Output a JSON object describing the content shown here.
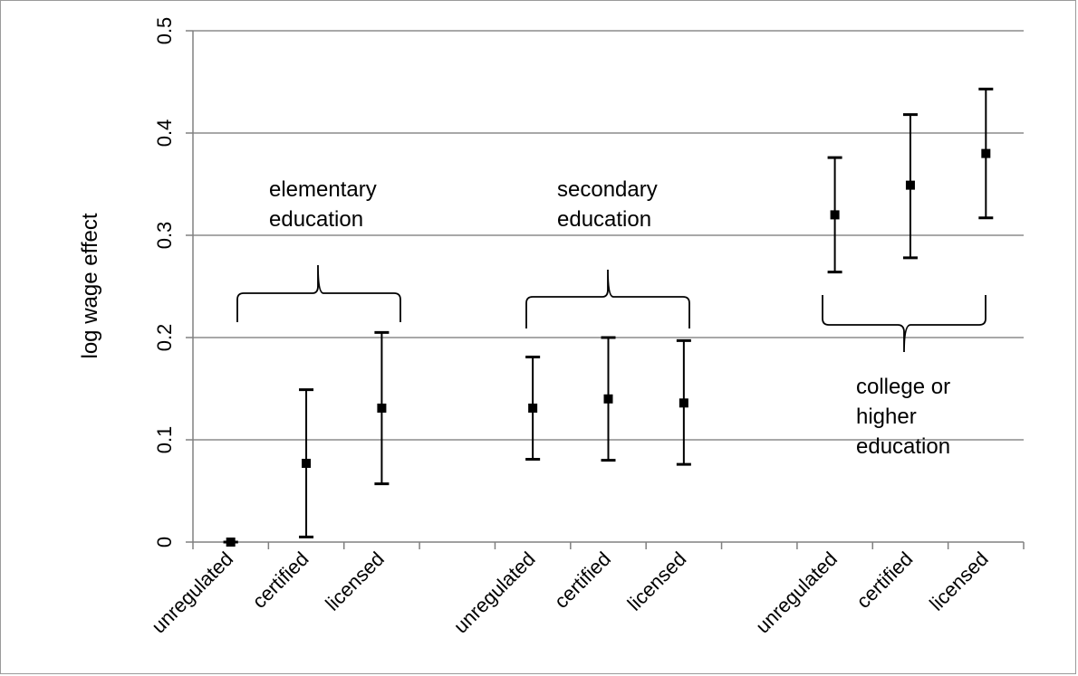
{
  "chart_data": {
    "type": "scatter",
    "title": "",
    "xlabel": "",
    "ylabel": "log wage effect",
    "ylim": [
      0,
      0.5
    ],
    "yticks": [
      "0",
      "0.1",
      "0.2",
      "0.3",
      "0.4",
      "0.5"
    ],
    "grid": true,
    "legend": "none",
    "categories": [
      "unregulated",
      "certified",
      "licensed",
      "",
      "unregulated",
      "certified",
      "licensed",
      "",
      "unregulated",
      "certified",
      "licensed"
    ],
    "points": [
      {
        "group": "elementary",
        "category": "unregulated",
        "value": 0.0,
        "low": 0.0,
        "high": 0.0
      },
      {
        "group": "elementary",
        "category": "certified",
        "value": 0.077,
        "low": 0.005,
        "high": 0.149
      },
      {
        "group": "elementary",
        "category": "licensed",
        "value": 0.131,
        "low": 0.057,
        "high": 0.205
      },
      {
        "group": "secondary",
        "category": "unregulated",
        "value": 0.131,
        "low": 0.081,
        "high": 0.181
      },
      {
        "group": "secondary",
        "category": "certified",
        "value": 0.14,
        "low": 0.08,
        "high": 0.2
      },
      {
        "group": "secondary",
        "category": "licensed",
        "value": 0.136,
        "low": 0.076,
        "high": 0.197
      },
      {
        "group": "college",
        "category": "unregulated",
        "value": 0.32,
        "low": 0.264,
        "high": 0.376
      },
      {
        "group": "college",
        "category": "certified",
        "value": 0.349,
        "low": 0.278,
        "high": 0.418
      },
      {
        "group": "college",
        "category": "licensed",
        "value": 0.38,
        "low": 0.317,
        "high": 0.443
      }
    ],
    "annotations": [
      {
        "lines": [
          "elementary",
          "education"
        ]
      },
      {
        "lines": [
          "secondary",
          "education"
        ]
      },
      {
        "lines": [
          "college or",
          "higher",
          "education"
        ]
      }
    ]
  }
}
